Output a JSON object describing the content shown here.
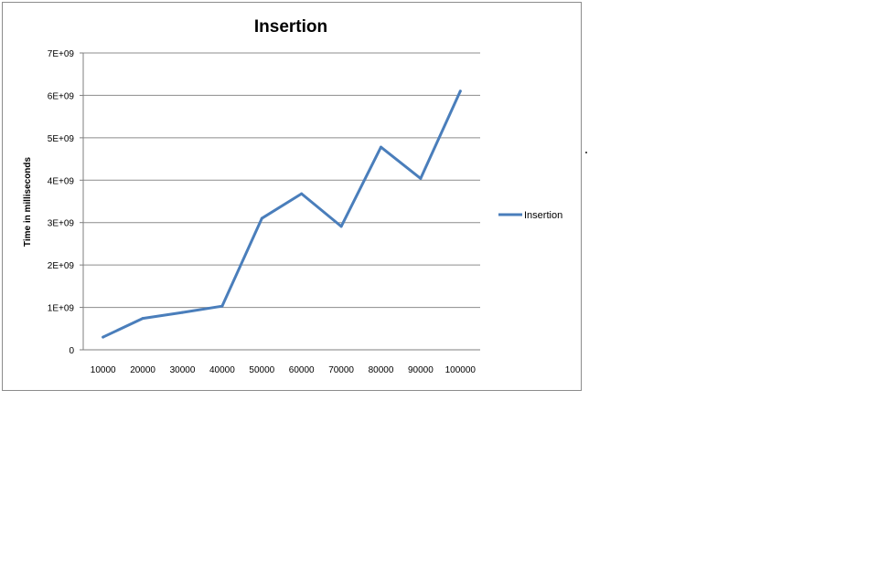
{
  "chart_data": {
    "type": "line",
    "title": "Insertion",
    "xlabel": "",
    "ylabel": "Time in milliseconds",
    "categories": [
      "10000",
      "20000",
      "30000",
      "40000",
      "50000",
      "60000",
      "70000",
      "80000",
      "90000",
      "100000"
    ],
    "series": [
      {
        "name": "Insertion",
        "color": "#4a7ebb",
        "values": [
          300000000,
          740000000,
          880000000,
          1030000000,
          3100000000,
          3680000000,
          2910000000,
          4780000000,
          4040000000,
          6100000000
        ]
      }
    ],
    "ylim": [
      0,
      7000000000
    ],
    "yticks": [
      {
        "value": 0,
        "label": "0"
      },
      {
        "value": 1000000000,
        "label": "1E+09"
      },
      {
        "value": 2000000000,
        "label": "2E+09"
      },
      {
        "value": 3000000000,
        "label": "3E+09"
      },
      {
        "value": 4000000000,
        "label": "4E+09"
      },
      {
        "value": 5000000000,
        "label": "5E+09"
      },
      {
        "value": 6000000000,
        "label": "6E+09"
      },
      {
        "value": 7000000000,
        "label": "7E+09"
      }
    ],
    "grid": true,
    "legend": "right"
  }
}
